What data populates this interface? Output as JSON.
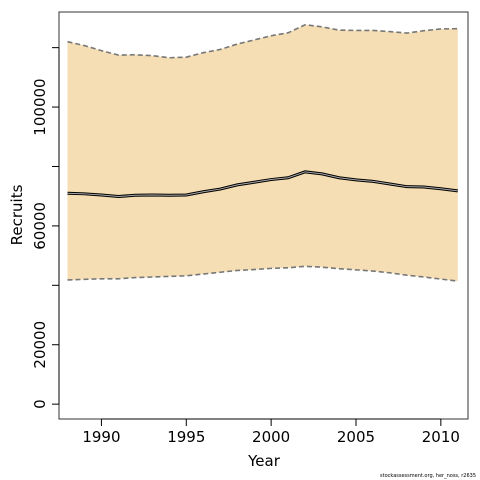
{
  "chart_data": {
    "type": "line",
    "title": "",
    "xlabel": "Year",
    "ylabel": "Recruits",
    "xlim": [
      1987.5,
      2011.6
    ],
    "ylim": [
      -5000,
      132000
    ],
    "xticks": [
      1990,
      1995,
      2000,
      2005,
      2010
    ],
    "yticks": [
      0,
      20000,
      40000,
      60000,
      80000,
      100000,
      120000
    ],
    "ytick_labels": [
      "0",
      "20000",
      "",
      "60000",
      "",
      "100000",
      ""
    ],
    "grid": false,
    "x": [
      1988,
      1989,
      1990,
      1991,
      1992,
      1993,
      1994,
      1995,
      1996,
      1997,
      1998,
      1999,
      2000,
      2001,
      2002,
      2003,
      2004,
      2005,
      2006,
      2007,
      2008,
      2009,
      2010,
      2011
    ],
    "series": [
      {
        "values": [
          71000,
          70800,
          70400,
          69900,
          70300,
          70400,
          70300,
          70400,
          71500,
          72400,
          73800,
          74700,
          75600,
          76200,
          78200,
          77500,
          76200,
          75500,
          75000,
          74100,
          73200,
          73100,
          72500,
          71800
        ]
      },
      {
        "values": [
          122000,
          120700,
          119000,
          117500,
          117600,
          117300,
          116600,
          116800,
          118300,
          119400,
          121200,
          122600,
          124000,
          125000,
          127700,
          127000,
          125900,
          125800,
          125800,
          125400,
          124900,
          125700,
          126300,
          126400
        ]
      },
      {
        "values": [
          41800,
          42000,
          42200,
          42200,
          42600,
          42800,
          43000,
          43200,
          43800,
          44400,
          45000,
          45300,
          45700,
          45900,
          46400,
          46100,
          45600,
          45200,
          44800,
          44200,
          43400,
          42800,
          42100,
          41400
        ]
      }
    ],
    "colors": {
      "band": "#f5deb3",
      "line": "#000000",
      "bounds": "#777777",
      "frame": "#333333"
    }
  },
  "footnote": "stockassessment.org, her_noss, r2635"
}
